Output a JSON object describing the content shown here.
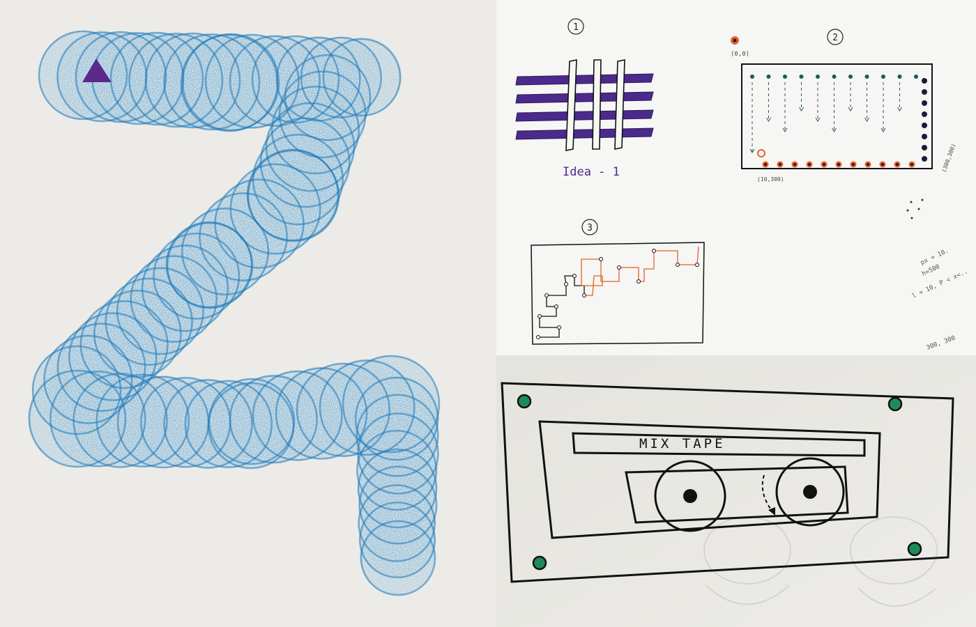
{
  "photos": {
    "left": {
      "paper_color": "#ecebe7",
      "stroke_color": "#2f8fcf",
      "marker_color": "#5a2a8a"
    },
    "top_right": {
      "paper_color": "#f6f6f4",
      "sketch_1": {
        "number": "1",
        "caption": "Idea - 1"
      },
      "sketch_2": {
        "number": "2",
        "label_origin": "(0,0)",
        "label_bottom_left": "(10,300)",
        "label_bottom_right": "(300,300)"
      },
      "sketch_3": {
        "number": "3"
      },
      "margin_notes": [
        "px = 10.",
        "h=500",
        "l = 10, P < x<..",
        "300, 300"
      ],
      "accent_colors": {
        "grid": "#4b2a8c",
        "dots": "#1f5a52",
        "orange": "#e8602a"
      }
    },
    "bottom_right": {
      "paper_color": "#e8e7e2",
      "tape_label": "MIX TAPE",
      "screw_color": "#1e8a5a"
    }
  }
}
